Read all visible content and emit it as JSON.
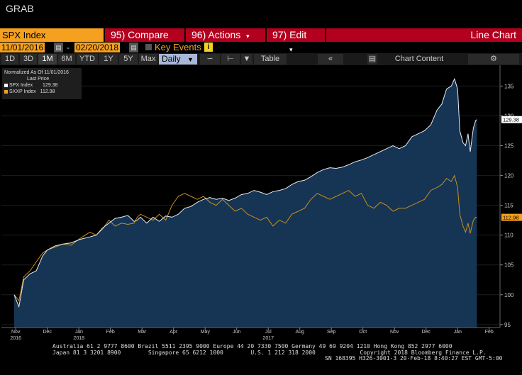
{
  "window": {
    "title": "GRAB"
  },
  "toolbar": {
    "ticker": "SPX Index",
    "compare_label": "95) Compare",
    "actions_label": "96) Actions",
    "edit_label": "97) Edit",
    "chart_type": "Line Chart"
  },
  "date_range": {
    "start": "11/01/2016",
    "end": "02/20/2018",
    "key_events_label": "Key Events",
    "dash": "-"
  },
  "period": {
    "buttons": [
      "1D",
      "3D",
      "1M",
      "6M",
      "YTD",
      "1Y",
      "5Y",
      "Max"
    ],
    "selected": "1M",
    "frequency": "Daily",
    "table_label": "Table",
    "chart_content_label": "Chart Content"
  },
  "legend": {
    "header1": "Normalized As Of 11/01/2016",
    "header2": "Last Price",
    "series": [
      {
        "name": "SPX Index",
        "value": "129.38",
        "color": "#ffffff"
      },
      {
        "name": "SXXP Index",
        "value": "112.98",
        "color": "#f5a01e"
      }
    ]
  },
  "footer": {
    "line1": "Australia 61 2 9777 8600 Brazil 5511 2395 9000 Europe 44 20 7330 7500 Germany 49 69 9204 1210 Hong Kong 852 2977 6000",
    "line2": "Japan 81 3 3201 8900        Singapore 65 6212 1000        U.S. 1 212 318 2000             Copyright 2018 Bloomberg Finance L.P.",
    "line3": "SN 168395 H326-3001-3 20-Feb-18  8:40:27 EST  GMT-5:00"
  },
  "chart_data": {
    "type": "line",
    "x_axis_labels": [
      "Nov",
      "Dec",
      "Jan",
      "Feb",
      "Mar",
      "Apr",
      "May",
      "Jun",
      "Jul",
      "Aug",
      "Sep",
      "Oct",
      "Nov",
      "Dec",
      "Jan",
      "Feb"
    ],
    "year_labels": [
      {
        "label": "2016",
        "month": "Nov"
      },
      {
        "label": "2017",
        "month": "Jul"
      },
      {
        "label": "2018",
        "month": "Jan"
      }
    ],
    "y_ticks": [
      95,
      100,
      105,
      110,
      115,
      120,
      125,
      130,
      135
    ],
    "ylim": [
      94.5,
      138.5
    ],
    "series": [
      {
        "name": "SPX Index",
        "color": "#ffffff",
        "last_label": "129.38",
        "points": [
          [
            0.0,
            100.0
          ],
          [
            0.15,
            98.0
          ],
          [
            0.3,
            102.5
          ],
          [
            0.5,
            103.5
          ],
          [
            0.7,
            104.0
          ],
          [
            0.9,
            106.5
          ],
          [
            1.05,
            107.5
          ],
          [
            1.3,
            108.2
          ],
          [
            1.55,
            108.5
          ],
          [
            1.8,
            108.7
          ],
          [
            2.1,
            109.3
          ],
          [
            2.4,
            109.7
          ],
          [
            2.6,
            110.0
          ],
          [
            2.8,
            111.2
          ],
          [
            3.0,
            112.0
          ],
          [
            3.2,
            112.8
          ],
          [
            3.4,
            113.0
          ],
          [
            3.6,
            113.3
          ],
          [
            3.8,
            112.3
          ],
          [
            3.9,
            112.5
          ],
          [
            4.0,
            113.0
          ],
          [
            4.2,
            112.0
          ],
          [
            4.4,
            113.0
          ],
          [
            4.6,
            112.3
          ],
          [
            4.8,
            113.2
          ],
          [
            5.0,
            113.0
          ],
          [
            5.2,
            113.5
          ],
          [
            5.4,
            114.5
          ],
          [
            5.6,
            114.8
          ],
          [
            5.8,
            115.5
          ],
          [
            6.0,
            116.0
          ],
          [
            6.2,
            116.3
          ],
          [
            6.4,
            116.0
          ],
          [
            6.6,
            116.2
          ],
          [
            6.8,
            115.8
          ],
          [
            7.0,
            116.2
          ],
          [
            7.2,
            116.8
          ],
          [
            7.4,
            117.0
          ],
          [
            7.6,
            117.5
          ],
          [
            7.8,
            117.2
          ],
          [
            8.0,
            116.8
          ],
          [
            8.2,
            117.3
          ],
          [
            8.4,
            117.5
          ],
          [
            8.6,
            117.8
          ],
          [
            8.8,
            118.5
          ],
          [
            9.0,
            119.0
          ],
          [
            9.2,
            119.2
          ],
          [
            9.4,
            119.8
          ],
          [
            9.6,
            120.5
          ],
          [
            9.8,
            121.0
          ],
          [
            10.0,
            121.3
          ],
          [
            10.2,
            121.2
          ],
          [
            10.4,
            121.4
          ],
          [
            10.6,
            121.8
          ],
          [
            10.8,
            122.3
          ],
          [
            11.0,
            122.6
          ],
          [
            11.2,
            123.0
          ],
          [
            11.4,
            123.5
          ],
          [
            11.6,
            124.0
          ],
          [
            11.8,
            124.5
          ],
          [
            12.0,
            125.0
          ],
          [
            12.2,
            124.5
          ],
          [
            12.4,
            125.0
          ],
          [
            12.6,
            126.5
          ],
          [
            12.8,
            127.0
          ],
          [
            13.0,
            127.5
          ],
          [
            13.2,
            128.5
          ],
          [
            13.4,
            131.0
          ],
          [
            13.55,
            132.0
          ],
          [
            13.7,
            134.5
          ],
          [
            13.85,
            135.0
          ],
          [
            13.95,
            136.2
          ],
          [
            14.05,
            134.5
          ],
          [
            14.12,
            127.5
          ],
          [
            14.22,
            125.5
          ],
          [
            14.3,
            125.0
          ],
          [
            14.38,
            127.0
          ],
          [
            14.45,
            124.0
          ],
          [
            14.55,
            128.0
          ],
          [
            14.62,
            129.2
          ],
          [
            14.66,
            129.38
          ]
        ]
      },
      {
        "name": "SXXP Index",
        "color": "#f5a01e",
        "last_label": "112.98",
        "points": [
          [
            0.0,
            100.0
          ],
          [
            0.15,
            99.0
          ],
          [
            0.3,
            103.0
          ],
          [
            0.5,
            104.0
          ],
          [
            0.7,
            105.5
          ],
          [
            0.9,
            107.0
          ],
          [
            1.05,
            107.5
          ],
          [
            1.3,
            108.0
          ],
          [
            1.55,
            108.5
          ],
          [
            1.8,
            108.3
          ],
          [
            2.1,
            109.5
          ],
          [
            2.4,
            110.5
          ],
          [
            2.6,
            110.0
          ],
          [
            2.8,
            111.0
          ],
          [
            3.0,
            112.5
          ],
          [
            3.2,
            111.5
          ],
          [
            3.4,
            112.0
          ],
          [
            3.6,
            111.8
          ],
          [
            3.8,
            112.0
          ],
          [
            3.9,
            113.0
          ],
          [
            4.0,
            113.5
          ],
          [
            4.2,
            113.0
          ],
          [
            4.4,
            112.5
          ],
          [
            4.6,
            113.5
          ],
          [
            4.8,
            112.5
          ],
          [
            5.0,
            115.0
          ],
          [
            5.2,
            116.5
          ],
          [
            5.4,
            117.0
          ],
          [
            5.6,
            116.5
          ],
          [
            5.8,
            116.0
          ],
          [
            6.0,
            116.5
          ],
          [
            6.2,
            115.5
          ],
          [
            6.4,
            115.0
          ],
          [
            6.6,
            116.0
          ],
          [
            6.8,
            115.0
          ],
          [
            7.0,
            114.0
          ],
          [
            7.2,
            114.5
          ],
          [
            7.4,
            113.5
          ],
          [
            7.6,
            113.0
          ],
          [
            7.8,
            112.5
          ],
          [
            8.0,
            113.0
          ],
          [
            8.2,
            111.5
          ],
          [
            8.4,
            112.5
          ],
          [
            8.6,
            112.0
          ],
          [
            8.8,
            113.5
          ],
          [
            9.0,
            114.0
          ],
          [
            9.2,
            114.5
          ],
          [
            9.4,
            116.0
          ],
          [
            9.6,
            117.0
          ],
          [
            9.8,
            116.5
          ],
          [
            10.0,
            116.0
          ],
          [
            10.2,
            116.5
          ],
          [
            10.4,
            117.0
          ],
          [
            10.6,
            117.5
          ],
          [
            10.8,
            116.5
          ],
          [
            11.0,
            117.0
          ],
          [
            11.2,
            115.0
          ],
          [
            11.4,
            114.5
          ],
          [
            11.6,
            115.5
          ],
          [
            11.8,
            115.0
          ],
          [
            12.0,
            114.0
          ],
          [
            12.2,
            114.5
          ],
          [
            12.4,
            114.5
          ],
          [
            12.6,
            115.0
          ],
          [
            12.8,
            115.5
          ],
          [
            13.0,
            116.0
          ],
          [
            13.2,
            117.5
          ],
          [
            13.4,
            118.0
          ],
          [
            13.55,
            118.5
          ],
          [
            13.7,
            119.5
          ],
          [
            13.85,
            119.0
          ],
          [
            13.95,
            120.0
          ],
          [
            14.05,
            118.0
          ],
          [
            14.12,
            113.5
          ],
          [
            14.22,
            111.5
          ],
          [
            14.3,
            110.5
          ],
          [
            14.38,
            112.0
          ],
          [
            14.45,
            110.3
          ],
          [
            14.55,
            112.5
          ],
          [
            14.62,
            113.0
          ],
          [
            14.66,
            112.98
          ]
        ]
      }
    ],
    "grid": true,
    "legend_position": "top-left"
  }
}
